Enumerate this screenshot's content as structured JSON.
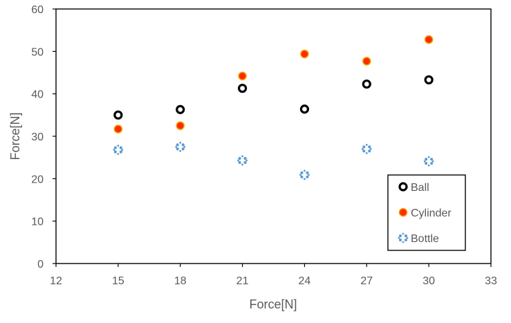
{
  "chart_data": {
    "type": "scatter",
    "title": "",
    "xlabel": "Force[N]",
    "ylabel": "Force[N]",
    "xlim": [
      12,
      33
    ],
    "ylim": [
      0,
      60
    ],
    "xticks": [
      12,
      15,
      18,
      21,
      24,
      27,
      30,
      33
    ],
    "yticks": [
      0,
      10,
      20,
      30,
      40,
      50,
      60
    ],
    "grid": false,
    "legend_position": "bottom-right",
    "series": [
      {
        "name": "Ball",
        "marker": "ring",
        "color": "#000000",
        "x": [
          15,
          18,
          21,
          24,
          27,
          30
        ],
        "y": [
          35.0,
          36.3,
          41.3,
          36.4,
          42.3,
          43.3
        ]
      },
      {
        "name": "Cylinder",
        "marker": "filled-circle",
        "color": "#ff2a00",
        "edge_color": "#f2a300",
        "x": [
          15,
          18,
          21,
          24,
          27,
          30
        ],
        "y": [
          31.7,
          32.5,
          44.2,
          49.4,
          47.7,
          52.8
        ]
      },
      {
        "name": "Bottle",
        "marker": "star-dots",
        "color": "#5b9bd5",
        "x": [
          15,
          18,
          21,
          24,
          27,
          30
        ],
        "y": [
          26.8,
          27.5,
          24.3,
          20.9,
          27.0,
          24.1
        ]
      }
    ]
  }
}
